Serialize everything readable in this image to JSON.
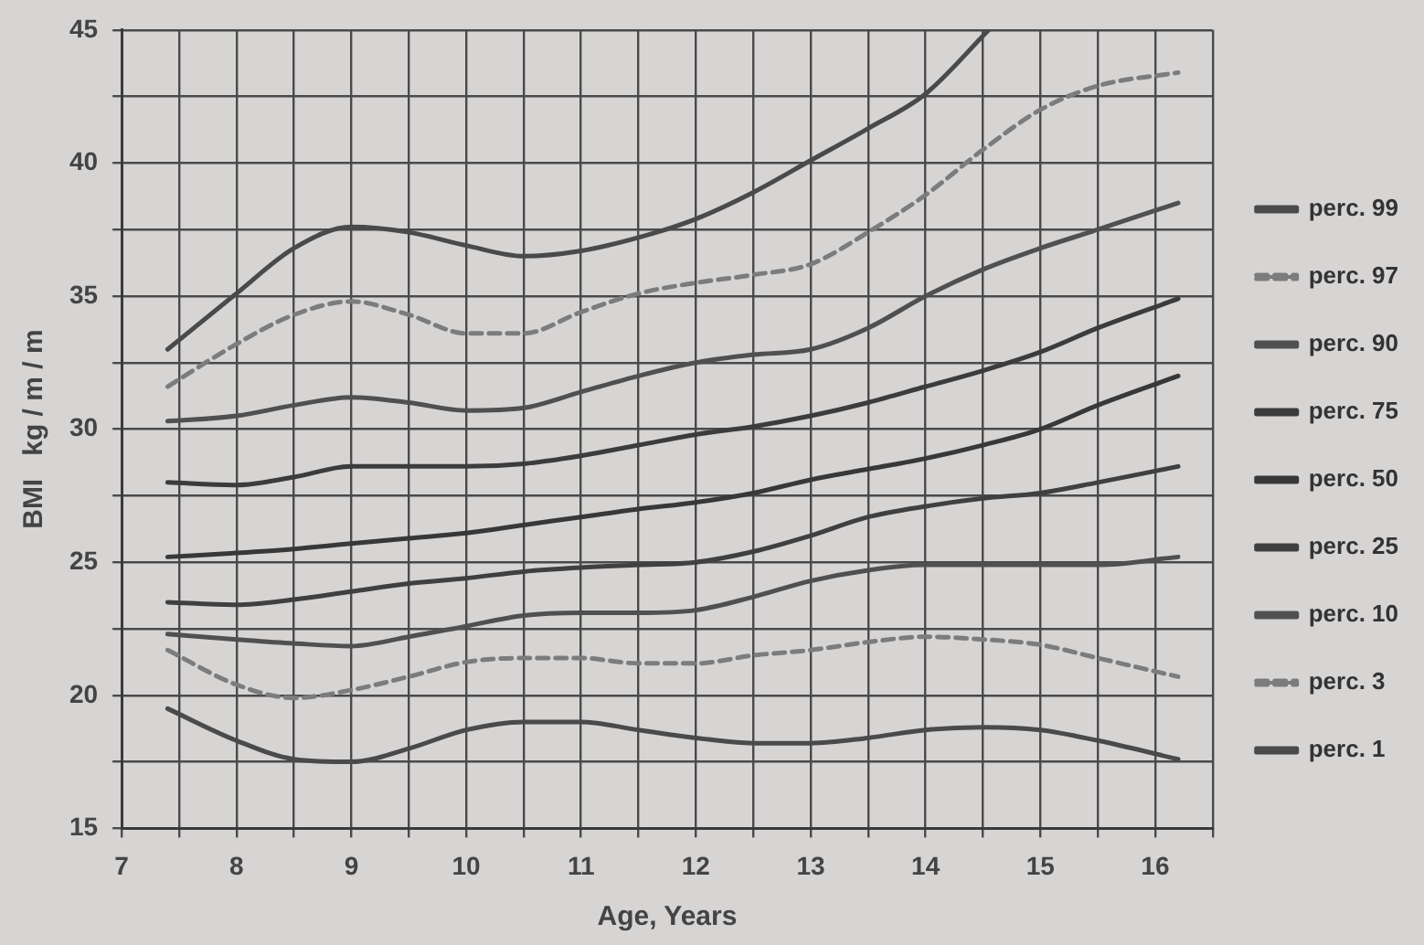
{
  "chart_data": {
    "type": "line",
    "xlabel": "Age, Years",
    "ylabel": "BMI   kg / m / m",
    "xlim": [
      7,
      16.5
    ],
    "xticks": [
      7,
      {
        "value": 7.5,
        "label": null
      },
      8,
      {
        "value": 8.5,
        "label": null
      },
      9,
      {
        "value": 9.5,
        "label": null
      },
      10,
      {
        "value": 10.5,
        "label": null
      },
      11,
      {
        "value": 11.5,
        "label": null
      },
      12,
      {
        "value": 12.5,
        "label": null
      },
      13,
      {
        "value": 13.5,
        "label": null
      },
      14,
      {
        "value": 14.5,
        "label": null
      },
      15,
      {
        "value": 15.5,
        "label": null
      },
      16,
      {
        "value": 16.5,
        "label": null
      }
    ],
    "ylim": [
      15,
      45
    ],
    "yticks": [
      15,
      {
        "value": 17.5,
        "label": null
      },
      20,
      {
        "value": 22.5,
        "label": null
      },
      25,
      {
        "value": 27.5,
        "label": null
      },
      30,
      {
        "value": 32.5,
        "label": null
      },
      35,
      {
        "value": 37.5,
        "label": null
      },
      40,
      {
        "value": 42.5,
        "label": null
      },
      45
    ],
    "grid": true,
    "legend": "right",
    "marker": "none",
    "line_style": "solid",
    "x": [
      7.4,
      8,
      8.5,
      9,
      9.5,
      10,
      10.5,
      11,
      11.5,
      12,
      12.5,
      13,
      13.5,
      14,
      14.5,
      15,
      15.5,
      16.2
    ],
    "series": [
      {
        "name": "perc. 99",
        "color": "#4a4a4a",
        "x": [
          7.4,
          8,
          8.5,
          9,
          9.5,
          10,
          10.5,
          11,
          11.5,
          12,
          12.5,
          13,
          13.5,
          14,
          14.55
        ],
        "values": [
          33.0,
          35.1,
          36.8,
          37.6,
          37.4,
          36.9,
          36.5,
          36.7,
          37.2,
          37.9,
          38.9,
          40.1,
          41.3,
          42.6,
          45
        ]
      },
      {
        "name": "perc. 97",
        "color": "#7c7c7c",
        "line_style": "dashed",
        "values": [
          31.6,
          33.2,
          34.3,
          34.8,
          34.3,
          33.6,
          33.6,
          34.4,
          35.1,
          35.5,
          35.8,
          36.2,
          37.4,
          38.8,
          40.5,
          42.0,
          42.9,
          43.4
        ]
      },
      {
        "name": "perc. 90",
        "color": "#505050",
        "values": [
          30.3,
          30.5,
          30.9,
          31.2,
          31.0,
          30.7,
          30.8,
          31.4,
          32.0,
          32.5,
          32.8,
          33.0,
          33.8,
          35.0,
          36.0,
          36.8,
          37.5,
          38.5
        ]
      },
      {
        "name": "perc. 75",
        "color": "#3c3c3c",
        "values": [
          28.0,
          27.9,
          28.2,
          28.6,
          28.6,
          28.6,
          28.7,
          29.0,
          29.4,
          29.8,
          30.1,
          30.5,
          31.0,
          31.6,
          32.2,
          32.9,
          33.8,
          34.9
        ]
      },
      {
        "name": "perc. 50",
        "color": "#383838",
        "values": [
          25.2,
          25.35,
          25.5,
          25.7,
          25.9,
          26.1,
          26.4,
          26.7,
          27.0,
          27.25,
          27.6,
          28.1,
          28.5,
          28.9,
          29.4,
          30.0,
          30.9,
          32.0
        ]
      },
      {
        "name": "perc. 25",
        "color": "#404040",
        "values": [
          23.5,
          23.4,
          23.6,
          23.9,
          24.2,
          24.4,
          24.65,
          24.8,
          24.9,
          25.0,
          25.4,
          26.0,
          26.7,
          27.1,
          27.4,
          27.6,
          28.0,
          28.6
        ]
      },
      {
        "name": "perc. 10",
        "color": "#505050",
        "values": [
          22.3,
          22.1,
          21.95,
          21.85,
          22.2,
          22.6,
          23.0,
          23.1,
          23.1,
          23.2,
          23.7,
          24.3,
          24.7,
          24.9,
          24.9,
          24.9,
          24.9,
          25.2
        ]
      },
      {
        "name": "perc. 3",
        "color": "#7c7c7c",
        "line_style": "dashed",
        "values": [
          21.7,
          20.4,
          19.9,
          20.2,
          20.7,
          21.25,
          21.4,
          21.4,
          21.2,
          21.2,
          21.5,
          21.7,
          22.0,
          22.2,
          22.1,
          21.9,
          21.4,
          20.7
        ]
      },
      {
        "name": "perc. 1",
        "color": "#4a4a4a",
        "values": [
          19.5,
          18.3,
          17.6,
          17.5,
          18.0,
          18.7,
          19.0,
          19.0,
          18.7,
          18.4,
          18.2,
          18.2,
          18.4,
          18.7,
          18.8,
          18.7,
          18.3,
          17.6
        ]
      }
    ]
  }
}
